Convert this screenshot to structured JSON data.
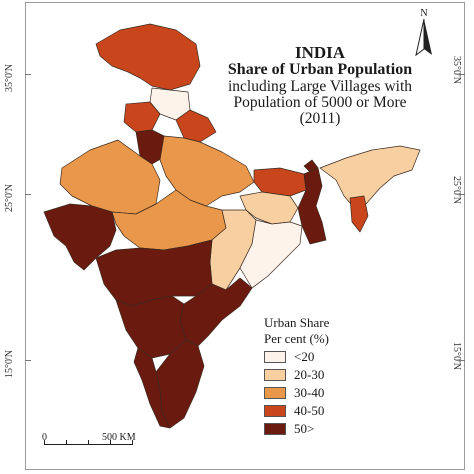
{
  "title": {
    "line1": "INDIA",
    "line2": "Share of Urban Population",
    "line3": "including Large Villages with",
    "line4": "Population of 5000 or More",
    "line5": "(2011)"
  },
  "north_arrow": {
    "label": "N",
    "icon": "north-arrow-icon"
  },
  "latitude_labels": {
    "left": [
      "35°0'N",
      "25°0'N",
      "15°0'N"
    ],
    "right": [
      "35°0'N",
      "25°0'N",
      "15°0'N"
    ]
  },
  "legend": {
    "title_line1": "Urban Share",
    "title_line2": "Per cent (%)",
    "classes": [
      {
        "label": "<20",
        "color": "#fdf3ea"
      },
      {
        "label": "20-30",
        "color": "#f8cfa0"
      },
      {
        "label": "30-40",
        "color": "#e9974a"
      },
      {
        "label": "40-50",
        "color": "#c9461d"
      },
      {
        "label": "50>",
        "color": "#6b1a0f"
      }
    ]
  },
  "scale": {
    "start": "0",
    "end": "500 KM"
  }
}
